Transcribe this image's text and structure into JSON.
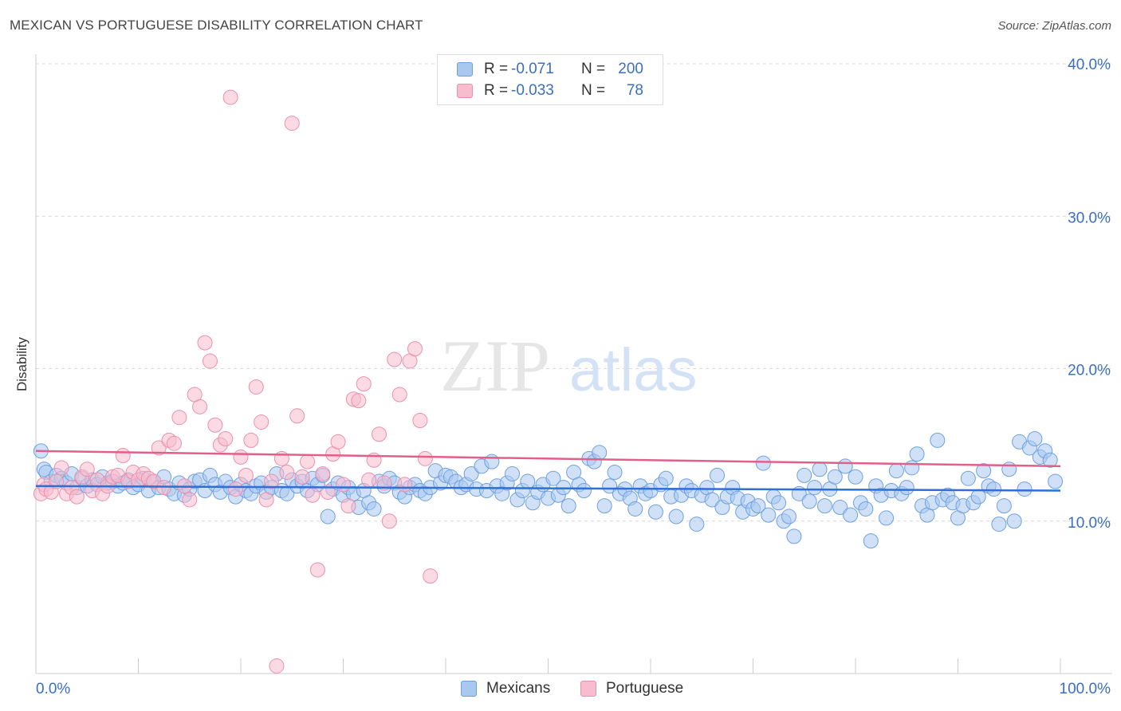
{
  "title": "MEXICAN VS PORTUGUESE DISABILITY CORRELATION CHART",
  "source": "Source: ZipAtlas.com",
  "watermark": {
    "left": "ZIP",
    "right": "atlas"
  },
  "legend": {
    "rows": [
      {
        "r_label": "R =",
        "r_value": "-0.071",
        "n_label": "N =",
        "n_value": "200"
      },
      {
        "r_label": "R =",
        "r_value": "-0.033",
        "n_label": "N =",
        "n_value": "78"
      }
    ]
  },
  "colors": {
    "blue_fill": "#a9c8f0",
    "blue_stroke": "#6ea0e0",
    "blue_line": "#2f6fd6",
    "pink_fill": "#f7bccd",
    "pink_stroke": "#ec8fad",
    "pink_line": "#e0608a",
    "axis_text": "#3a6fc4",
    "grid": "#d9d9d9"
  },
  "chart_data": {
    "type": "scatter",
    "title": "MEXICAN VS PORTUGUESE DISABILITY CORRELATION CHART",
    "xlabel": "",
    "ylabel": "Disability",
    "xlim": [
      0,
      100
    ],
    "ylim": [
      0,
      40
    ],
    "x_ticks": [
      "0.0%",
      "100.0%"
    ],
    "y_ticks": [
      "10.0%",
      "20.0%",
      "30.0%",
      "40.0%"
    ],
    "y_tick_values": [
      10,
      20,
      30,
      40
    ],
    "grid": true,
    "legend_position": "top-center",
    "series": [
      {
        "name": "Mexicans",
        "color": "#a9c8f0",
        "trend": {
          "y_at_x0": 12.3,
          "y_at_x100": 12.0
        },
        "points": [
          [
            0.5,
            14.6
          ],
          [
            0.8,
            13.4
          ],
          [
            1.0,
            13.2
          ],
          [
            1.5,
            12.6
          ],
          [
            2.0,
            13.0
          ],
          [
            2.5,
            12.8
          ],
          [
            3.0,
            12.5
          ],
          [
            3.5,
            13.1
          ],
          [
            4.0,
            12.2
          ],
          [
            4.5,
            12.8
          ],
          [
            5.0,
            12.3
          ],
          [
            5.5,
            12.7
          ],
          [
            6.0,
            12.4
          ],
          [
            6.5,
            12.9
          ],
          [
            7.0,
            12.5
          ],
          [
            7.5,
            12.6
          ],
          [
            8.0,
            12.3
          ],
          [
            8.5,
            12.5
          ],
          [
            9.0,
            12.7
          ],
          [
            9.5,
            12.2
          ],
          [
            10.0,
            12.4
          ],
          [
            10.5,
            12.8
          ],
          [
            11.0,
            12.0
          ],
          [
            11.5,
            12.6
          ],
          [
            12.0,
            12.2
          ],
          [
            12.5,
            12.9
          ],
          [
            13.0,
            12.1
          ],
          [
            13.5,
            11.8
          ],
          [
            14.0,
            12.5
          ],
          [
            14.5,
            11.7
          ],
          [
            15.0,
            12.1
          ],
          [
            15.5,
            12.6
          ],
          [
            16.0,
            12.7
          ],
          [
            16.5,
            12.0
          ],
          [
            17.0,
            13.0
          ],
          [
            17.5,
            12.4
          ],
          [
            18.0,
            11.9
          ],
          [
            18.5,
            12.6
          ],
          [
            19.0,
            12.2
          ],
          [
            19.5,
            11.6
          ],
          [
            20.0,
            12.4
          ],
          [
            20.5,
            12.0
          ],
          [
            21.0,
            11.8
          ],
          [
            21.5,
            12.3
          ],
          [
            22.0,
            12.5
          ],
          [
            22.5,
            11.9
          ],
          [
            23.0,
            12.2
          ],
          [
            23.5,
            13.1
          ],
          [
            24.0,
            12.0
          ],
          [
            24.5,
            11.8
          ],
          [
            25.0,
            12.7
          ],
          [
            25.5,
            12.3
          ],
          [
            26.0,
            12.6
          ],
          [
            26.5,
            12.0
          ],
          [
            27.0,
            12.8
          ],
          [
            27.5,
            12.4
          ],
          [
            28.0,
            13.0
          ],
          [
            28.5,
            10.3
          ],
          [
            29.0,
            12.1
          ],
          [
            29.5,
            12.5
          ],
          [
            30.0,
            11.7
          ],
          [
            30.5,
            12.2
          ],
          [
            31.0,
            11.8
          ],
          [
            31.5,
            10.9
          ],
          [
            32.0,
            12.0
          ],
          [
            32.5,
            11.2
          ],
          [
            33.0,
            10.8
          ],
          [
            33.5,
            12.6
          ],
          [
            34.0,
            12.3
          ],
          [
            34.5,
            12.8
          ],
          [
            35.0,
            12.5
          ],
          [
            35.5,
            11.9
          ],
          [
            36.0,
            11.6
          ],
          [
            36.5,
            12.2
          ],
          [
            37.0,
            12.4
          ],
          [
            37.5,
            12.0
          ],
          [
            38.0,
            11.8
          ],
          [
            38.5,
            12.2
          ],
          [
            39.0,
            13.3
          ],
          [
            39.5,
            12.5
          ],
          [
            40.0,
            13.0
          ],
          [
            40.5,
            12.9
          ],
          [
            41.0,
            12.6
          ],
          [
            41.5,
            12.2
          ],
          [
            42.0,
            12.4
          ],
          [
            42.5,
            13.1
          ],
          [
            43.0,
            12.1
          ],
          [
            43.5,
            13.6
          ],
          [
            44.0,
            12.0
          ],
          [
            44.5,
            13.9
          ],
          [
            45.0,
            12.3
          ],
          [
            45.5,
            11.8
          ],
          [
            46.0,
            12.5
          ],
          [
            46.5,
            13.1
          ],
          [
            47.0,
            11.4
          ],
          [
            47.5,
            12.0
          ],
          [
            48.0,
            12.6
          ],
          [
            48.5,
            11.2
          ],
          [
            49.0,
            11.9
          ],
          [
            49.5,
            12.4
          ],
          [
            50.0,
            11.5
          ],
          [
            50.5,
            12.8
          ],
          [
            51.0,
            11.7
          ],
          [
            51.5,
            12.2
          ],
          [
            52.0,
            11.0
          ],
          [
            52.5,
            13.2
          ],
          [
            53.0,
            12.4
          ],
          [
            53.5,
            12.0
          ],
          [
            54.0,
            14.1
          ],
          [
            54.5,
            13.9
          ],
          [
            55.0,
            14.5
          ],
          [
            55.5,
            11.0
          ],
          [
            56.0,
            12.3
          ],
          [
            56.5,
            13.2
          ],
          [
            57.0,
            11.8
          ],
          [
            57.5,
            12.1
          ],
          [
            58.0,
            11.5
          ],
          [
            58.5,
            10.8
          ],
          [
            59.0,
            12.3
          ],
          [
            59.5,
            11.8
          ],
          [
            60.0,
            12.0
          ],
          [
            60.5,
            10.6
          ],
          [
            61.0,
            12.4
          ],
          [
            61.5,
            12.8
          ],
          [
            62.0,
            11.6
          ],
          [
            62.5,
            10.3
          ],
          [
            63.0,
            11.7
          ],
          [
            63.5,
            12.3
          ],
          [
            64.0,
            12.0
          ],
          [
            64.5,
            9.8
          ],
          [
            65.0,
            11.7
          ],
          [
            65.5,
            12.2
          ],
          [
            66.0,
            11.4
          ],
          [
            66.5,
            13.0
          ],
          [
            67.0,
            10.9
          ],
          [
            67.5,
            11.6
          ],
          [
            68.0,
            12.2
          ],
          [
            68.5,
            11.5
          ],
          [
            69.0,
            10.6
          ],
          [
            69.5,
            11.3
          ],
          [
            70.0,
            10.8
          ],
          [
            70.5,
            11.0
          ],
          [
            71.0,
            13.8
          ],
          [
            71.5,
            10.4
          ],
          [
            72.0,
            11.6
          ],
          [
            72.5,
            11.2
          ],
          [
            73.0,
            10.0
          ],
          [
            73.5,
            10.3
          ],
          [
            74.0,
            9.0
          ],
          [
            74.5,
            11.8
          ],
          [
            75.0,
            13.0
          ],
          [
            75.5,
            11.3
          ],
          [
            76.0,
            12.2
          ],
          [
            76.5,
            13.4
          ],
          [
            77.0,
            11.0
          ],
          [
            77.5,
            12.1
          ],
          [
            78.0,
            12.9
          ],
          [
            78.5,
            10.9
          ],
          [
            79.0,
            13.6
          ],
          [
            79.5,
            10.4
          ],
          [
            80.0,
            12.9
          ],
          [
            80.5,
            11.2
          ],
          [
            81.0,
            10.8
          ],
          [
            81.5,
            8.7
          ],
          [
            82.0,
            12.3
          ],
          [
            82.5,
            11.7
          ],
          [
            83.0,
            10.2
          ],
          [
            83.5,
            12.0
          ],
          [
            84.0,
            13.3
          ],
          [
            84.5,
            11.8
          ],
          [
            85.0,
            12.2
          ],
          [
            85.5,
            13.5
          ],
          [
            86.0,
            14.4
          ],
          [
            86.5,
            11.0
          ],
          [
            87.0,
            10.4
          ],
          [
            87.5,
            11.2
          ],
          [
            88.0,
            15.3
          ],
          [
            88.5,
            11.4
          ],
          [
            89.0,
            11.7
          ],
          [
            89.5,
            11.2
          ],
          [
            90.0,
            10.2
          ],
          [
            90.5,
            11.0
          ],
          [
            91.0,
            12.8
          ],
          [
            91.5,
            11.2
          ],
          [
            92.0,
            11.6
          ],
          [
            92.5,
            13.3
          ],
          [
            93.0,
            12.3
          ],
          [
            93.5,
            12.1
          ],
          [
            94.0,
            9.8
          ],
          [
            94.5,
            11.0
          ],
          [
            95.0,
            13.4
          ],
          [
            95.5,
            10.0
          ],
          [
            96.0,
            15.2
          ],
          [
            96.5,
            12.1
          ],
          [
            97.0,
            14.8
          ],
          [
            97.5,
            15.4
          ],
          [
            98.0,
            14.2
          ],
          [
            98.5,
            14.6
          ],
          [
            99.0,
            14.0
          ],
          [
            99.5,
            12.6
          ]
        ]
      },
      {
        "name": "Portuguese",
        "color": "#f7bccd",
        "trend": {
          "y_at_x0": 14.6,
          "y_at_x100": 13.6
        },
        "points": [
          [
            0.5,
            11.8
          ],
          [
            0.8,
            12.4
          ],
          [
            1.0,
            12.1
          ],
          [
            1.5,
            11.9
          ],
          [
            2.0,
            12.6
          ],
          [
            2.5,
            13.5
          ],
          [
            3.0,
            11.8
          ],
          [
            3.5,
            12.2
          ],
          [
            4.0,
            11.6
          ],
          [
            4.5,
            12.9
          ],
          [
            5.0,
            13.4
          ],
          [
            5.5,
            12.0
          ],
          [
            6.0,
            12.7
          ],
          [
            6.5,
            11.8
          ],
          [
            7.0,
            12.3
          ],
          [
            7.5,
            12.9
          ],
          [
            8.0,
            13.0
          ],
          [
            8.5,
            14.3
          ],
          [
            9.0,
            12.6
          ],
          [
            9.5,
            13.2
          ],
          [
            10.0,
            12.7
          ],
          [
            10.5,
            13.1
          ],
          [
            11.0,
            12.8
          ],
          [
            11.5,
            12.6
          ],
          [
            12.0,
            14.8
          ],
          [
            12.5,
            12.2
          ],
          [
            13.0,
            15.3
          ],
          [
            13.5,
            15.1
          ],
          [
            14.0,
            16.8
          ],
          [
            14.5,
            12.3
          ],
          [
            15.0,
            11.4
          ],
          [
            15.5,
            18.3
          ],
          [
            16.0,
            17.5
          ],
          [
            16.5,
            21.7
          ],
          [
            17.0,
            20.5
          ],
          [
            17.5,
            16.3
          ],
          [
            18.0,
            15.0
          ],
          [
            18.5,
            15.4
          ],
          [
            19.0,
            37.8
          ],
          [
            19.5,
            12.1
          ],
          [
            20.0,
            14.2
          ],
          [
            20.5,
            13.0
          ],
          [
            21.0,
            15.3
          ],
          [
            21.5,
            18.8
          ],
          [
            22.0,
            16.5
          ],
          [
            22.5,
            11.4
          ],
          [
            23.0,
            12.6
          ],
          [
            23.5,
            0.5
          ],
          [
            24.0,
            14.1
          ],
          [
            24.5,
            13.2
          ],
          [
            25.0,
            36.1
          ],
          [
            25.5,
            16.9
          ],
          [
            26.0,
            12.9
          ],
          [
            26.5,
            13.9
          ],
          [
            27.0,
            11.7
          ],
          [
            27.5,
            6.8
          ],
          [
            28.0,
            13.1
          ],
          [
            28.5,
            11.9
          ],
          [
            29.0,
            14.4
          ],
          [
            29.5,
            15.2
          ],
          [
            30.0,
            12.4
          ],
          [
            30.5,
            11.0
          ],
          [
            31.0,
            18.0
          ],
          [
            31.5,
            17.9
          ],
          [
            32.0,
            19.0
          ],
          [
            32.5,
            12.7
          ],
          [
            33.0,
            14.0
          ],
          [
            33.5,
            15.7
          ],
          [
            34.0,
            12.5
          ],
          [
            34.5,
            10.0
          ],
          [
            35.0,
            20.6
          ],
          [
            35.5,
            18.3
          ],
          [
            36.0,
            12.4
          ],
          [
            36.5,
            20.5
          ],
          [
            37.0,
            21.3
          ],
          [
            37.5,
            16.6
          ],
          [
            38.0,
            14.1
          ],
          [
            38.5,
            6.4
          ]
        ]
      }
    ]
  }
}
